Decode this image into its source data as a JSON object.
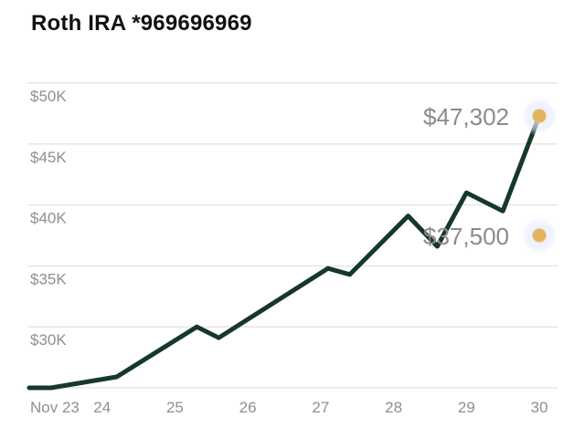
{
  "header": {
    "title": "Roth IRA *969696969"
  },
  "chart_data": {
    "type": "line",
    "title": "",
    "xlabel": "",
    "ylabel": "",
    "ylim": [
      25000,
      52500
    ],
    "y_ticks": [
      {
        "value": 30000,
        "label": "$30K"
      },
      {
        "value": 35000,
        "label": "$35K"
      },
      {
        "value": 40000,
        "label": "$40K"
      },
      {
        "value": 45000,
        "label": "$45K"
      },
      {
        "value": 50000,
        "label": "$50K"
      }
    ],
    "x_range": [
      23,
      30
    ],
    "x_ticks": [
      {
        "value": 23,
        "label": "Nov 23"
      },
      {
        "value": 24,
        "label": "24"
      },
      {
        "value": 25,
        "label": "25"
      },
      {
        "value": 26,
        "label": "26"
      },
      {
        "value": 27,
        "label": "27"
      },
      {
        "value": 28,
        "label": "28"
      },
      {
        "value": 29,
        "label": "29"
      },
      {
        "value": 30,
        "label": "30"
      }
    ],
    "grid": true,
    "series": [
      {
        "color": "#16382a",
        "points": [
          {
            "x": 23.0,
            "y": 25000
          },
          {
            "x": 23.3,
            "y": 25000
          },
          {
            "x": 24.2,
            "y": 25900
          },
          {
            "x": 25.3,
            "y": 30000
          },
          {
            "x": 25.6,
            "y": 29100
          },
          {
            "x": 27.1,
            "y": 34800
          },
          {
            "x": 27.4,
            "y": 34300
          },
          {
            "x": 28.2,
            "y": 39100
          },
          {
            "x": 28.6,
            "y": 36600
          },
          {
            "x": 29.0,
            "y": 41000
          },
          {
            "x": 29.5,
            "y": 39500
          },
          {
            "x": 30.0,
            "y": 47302
          }
        ]
      }
    ],
    "markers": [
      {
        "x": 30.0,
        "y": 47302,
        "label": "$47,302",
        "color": "#e2b55d"
      },
      {
        "x": 30.0,
        "y": 37500,
        "label": "$37,500",
        "color": "#e2b55d"
      }
    ],
    "cursor_x": 30.0
  }
}
